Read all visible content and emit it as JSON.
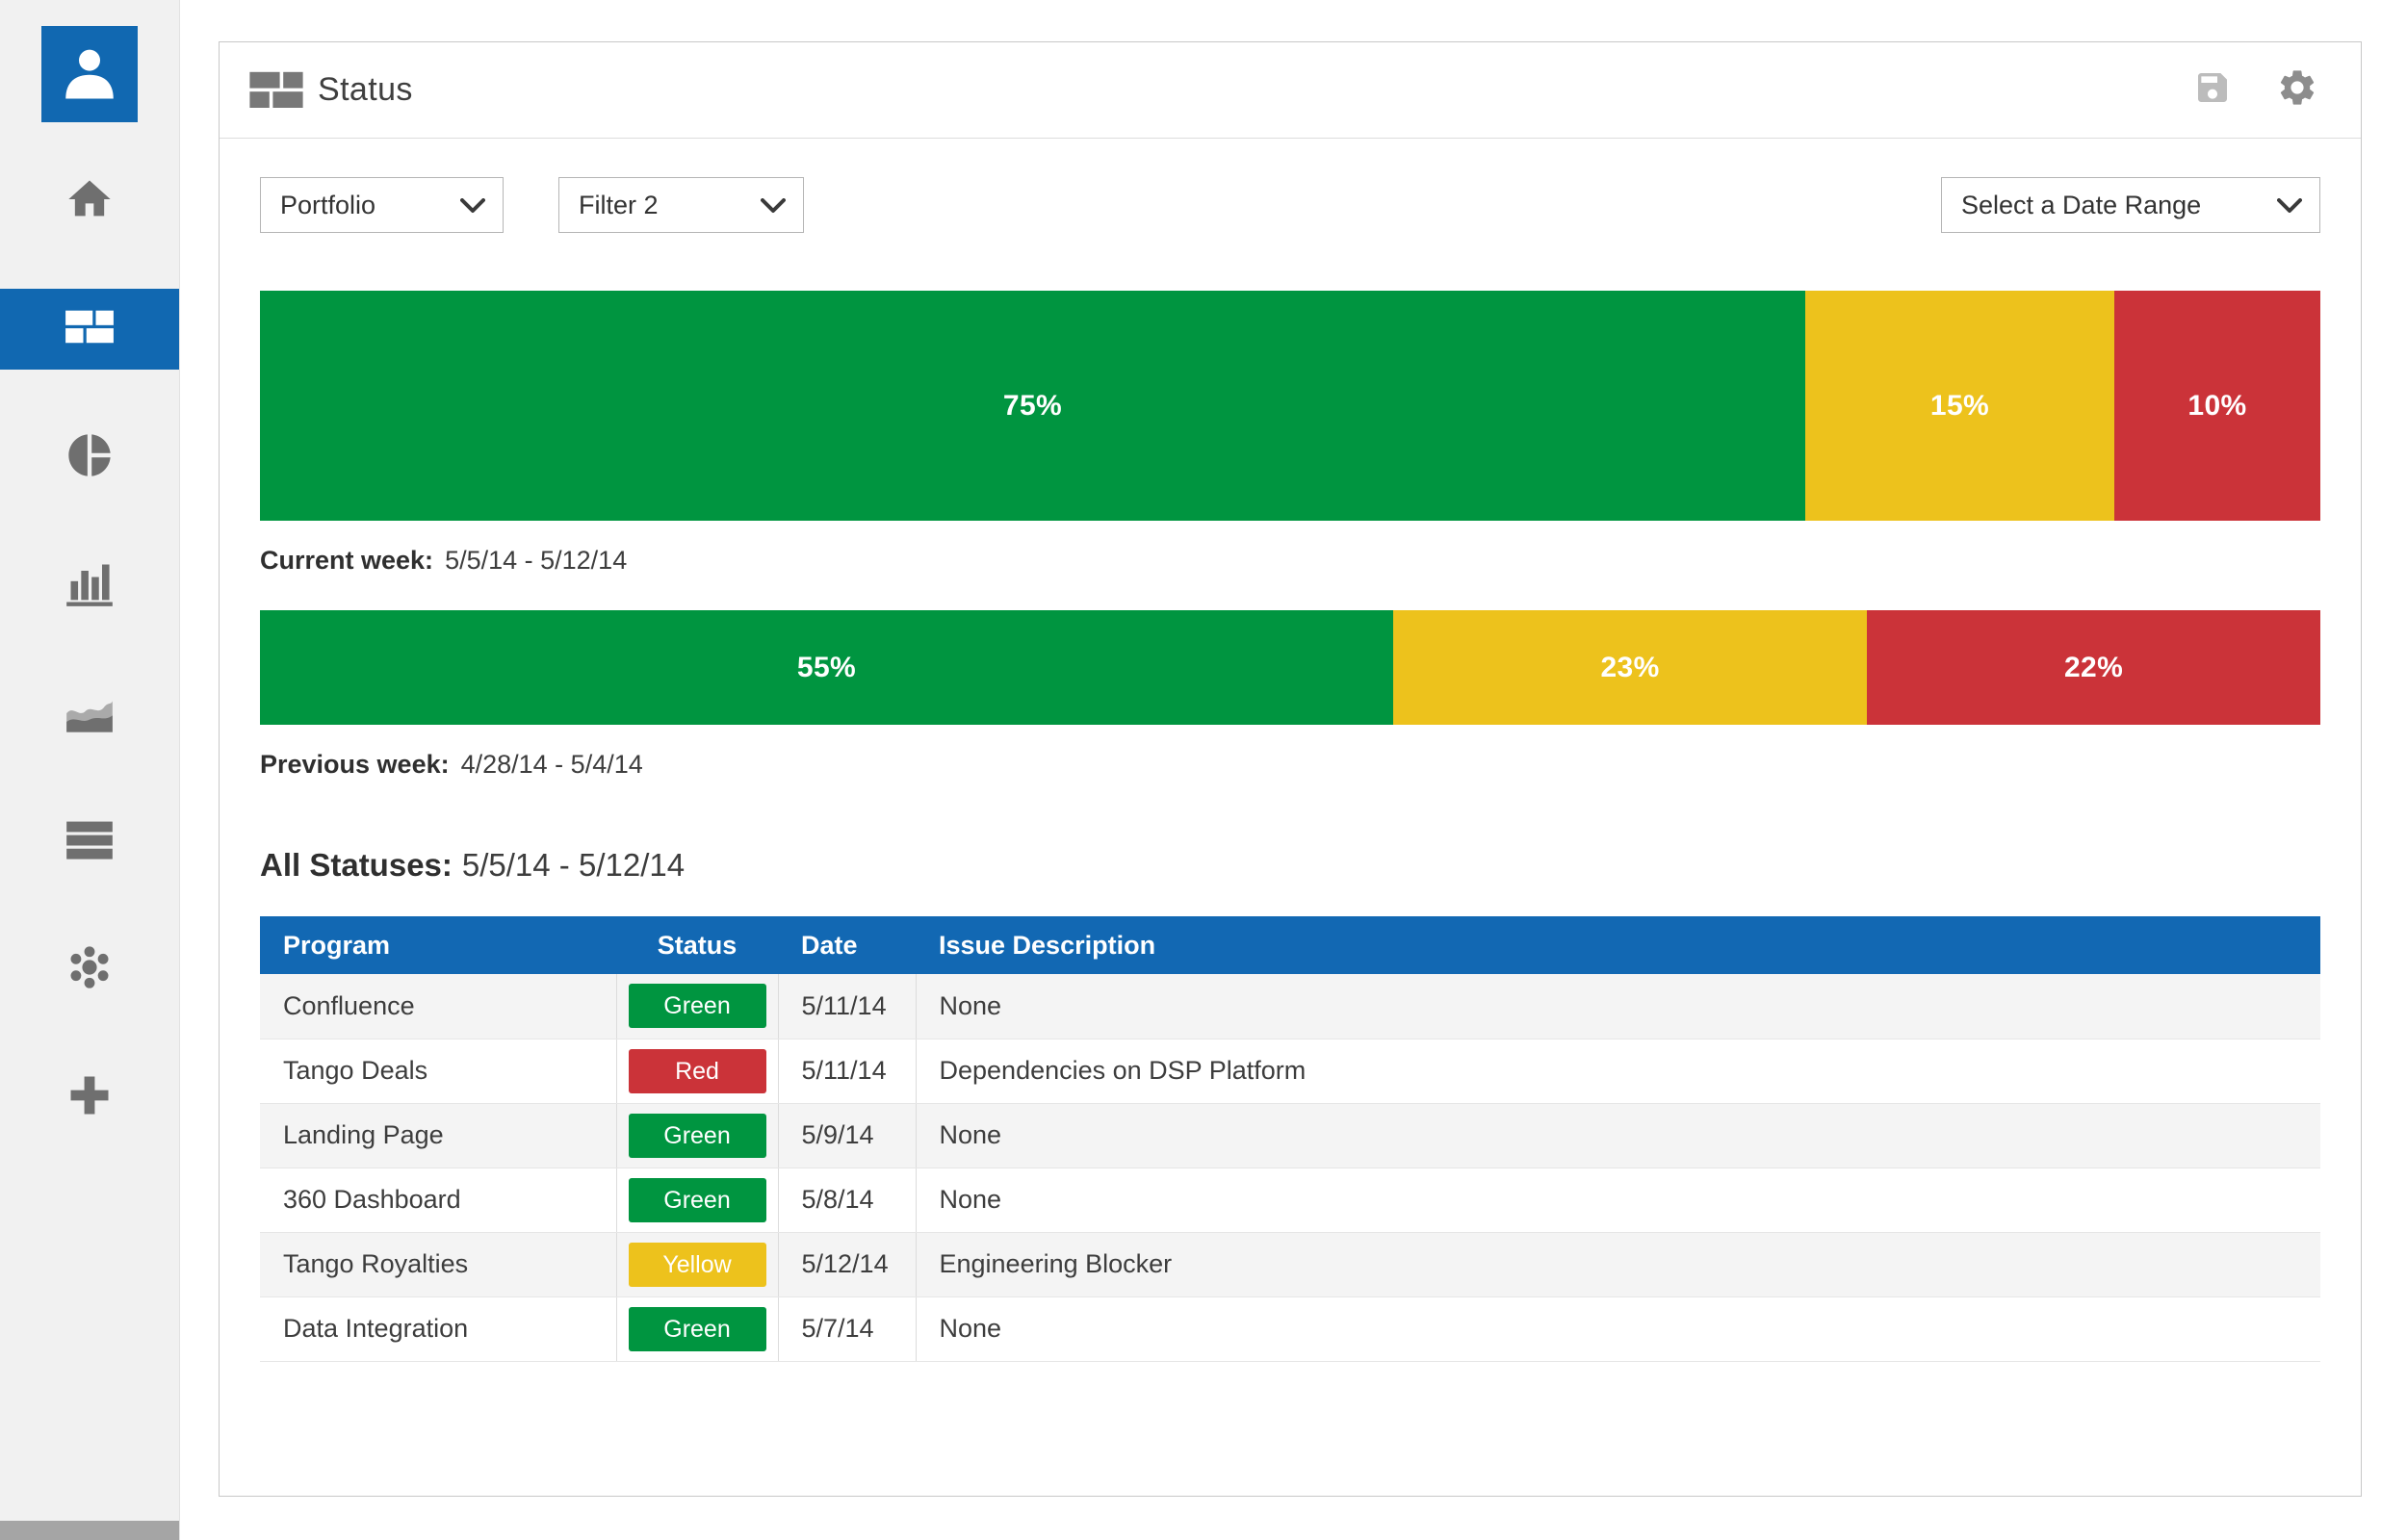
{
  "header": {
    "title": "Status"
  },
  "sidebar": {
    "items": [
      {
        "name": "home",
        "active": false
      },
      {
        "name": "dashboard",
        "active": true
      },
      {
        "name": "pie-chart",
        "active": false
      },
      {
        "name": "bar-chart",
        "active": false
      },
      {
        "name": "area-chart",
        "active": false
      },
      {
        "name": "list",
        "active": false
      },
      {
        "name": "team",
        "active": false
      },
      {
        "name": "add",
        "active": false
      }
    ]
  },
  "filters": {
    "portfolio_label": "Portfolio",
    "filter2_label": "Filter 2",
    "date_range_label": "Select a Date Range"
  },
  "chart_data": {
    "type": "bar",
    "stacked": true,
    "unit": "%",
    "bars": [
      {
        "caption": "Current week:",
        "date_range": "5/5/14 - 5/12/14",
        "segments": [
          {
            "label": "75%",
            "value": 75,
            "color": "green"
          },
          {
            "label": "15%",
            "value": 15,
            "color": "yellow"
          },
          {
            "label": "10%",
            "value": 10,
            "color": "red"
          }
        ]
      },
      {
        "caption": "Previous week:",
        "date_range": "4/28/14 - 5/4/14",
        "segments": [
          {
            "label": "55%",
            "value": 55,
            "color": "green"
          },
          {
            "label": "23%",
            "value": 23,
            "color": "yellow"
          },
          {
            "label": "22%",
            "value": 22,
            "color": "red"
          }
        ]
      }
    ]
  },
  "all_statuses": {
    "title": "All Statuses:",
    "date_range": "5/5/14 - 5/12/14"
  },
  "table": {
    "headers": [
      "Program",
      "Status",
      "Date",
      "Issue Description"
    ],
    "rows": [
      {
        "program": "Confluence",
        "status": "Green",
        "date": "5/11/14",
        "issue": "None"
      },
      {
        "program": "Tango Deals",
        "status": "Red",
        "date": "5/11/14",
        "issue": "Dependencies on DSP Platform"
      },
      {
        "program": "Landing Page",
        "status": "Green",
        "date": "5/9/14",
        "issue": "None"
      },
      {
        "program": "360 Dashboard",
        "status": "Green",
        "date": "5/8/14",
        "issue": "None"
      },
      {
        "program": "Tango Royalties",
        "status": "Yellow",
        "date": "5/12/14",
        "issue": "Engineering Blocker"
      },
      {
        "program": "Data Integration",
        "status": "Green",
        "date": "5/7/14",
        "issue": "None"
      }
    ]
  },
  "colors": {
    "green": "#009540",
    "yellow": "#edc21c",
    "red": "#cb3339",
    "blue": "#1268b3"
  }
}
